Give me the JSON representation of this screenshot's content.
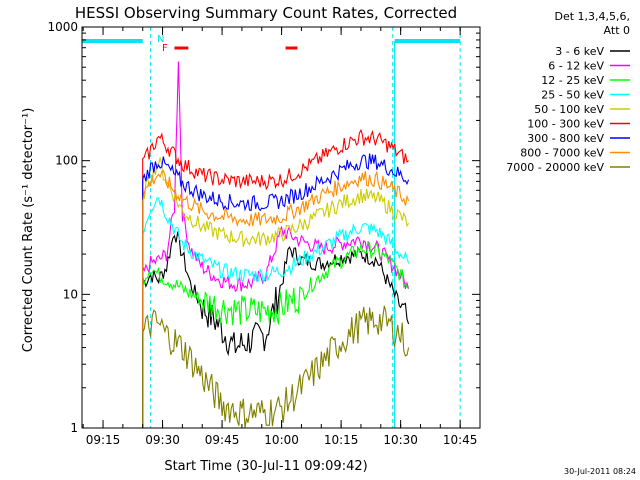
{
  "chart_data": {
    "type": "line",
    "title": "HESSI Observing Summary Count Rates, Corrected",
    "xlabel": "Start Time (30-Jul-11 09:09:42)",
    "ylabel": "Corrected Count Rate (s⁻¹ detector⁻¹)",
    "y_scale": "log",
    "ylim": [
      1,
      1000
    ],
    "xlim": [
      "09:09:42",
      "10:50:00"
    ],
    "x_tick_labels": [
      "09:15",
      "09:30",
      "09:45",
      "10:00",
      "10:15",
      "10:30",
      "10:45"
    ],
    "y_tick_labels": [
      "1",
      "10",
      "100",
      "1000"
    ],
    "legend_header": [
      "Det 1,3,4,5,6,",
      "Att 0"
    ],
    "legend_position": "right",
    "footer_timestamp": "30-Jul-2011 08:24",
    "flags": [
      {
        "label": "N",
        "color": "#00e5ee",
        "note": "night / eclipse intervals drawn as bars at top"
      },
      {
        "label": "F",
        "color": "#ff0000",
        "note": "flare flag intervals drawn as bars at top"
      }
    ],
    "night_intervals": [
      [
        "09:09:42",
        "09:25:00"
      ],
      [
        "10:28:30",
        "10:45:00"
      ]
    ],
    "flare_intervals": [
      [
        "09:33:00",
        "09:36:30"
      ],
      [
        "10:01:00",
        "10:04:00"
      ]
    ],
    "dashed_time_markers": [
      "09:27:00",
      "10:28:00",
      "10:45:00"
    ],
    "series": [
      {
        "name": "3 - 6 keV",
        "color": "#000000",
        "x": [
          "09:25",
          "09:27",
          "09:29",
          "09:31",
          "09:33",
          "09:35",
          "09:37",
          "09:40",
          "09:44",
          "09:48",
          "09:52",
          "09:56",
          "10:00",
          "10:02",
          "10:05",
          "10:10",
          "10:15",
          "10:20",
          "10:24",
          "10:27",
          "10:30",
          "10:32"
        ],
        "values": [
          12,
          14,
          13,
          16,
          30,
          20,
          12,
          8,
          6,
          4,
          4.5,
          5,
          12,
          22,
          18,
          17,
          19,
          20,
          18,
          12,
          8,
          6
        ]
      },
      {
        "name": "6 - 12 keV",
        "color": "#ff00ff",
        "x": [
          "09:25",
          "09:27",
          "09:29",
          "09:31",
          "09:33",
          "09:34",
          "09:35",
          "09:37",
          "09:40",
          "09:44",
          "09:48",
          "09:52",
          "09:56",
          "10:00",
          "10:05",
          "10:10",
          "10:15",
          "10:20",
          "10:24",
          "10:27",
          "10:30",
          "10:32"
        ],
        "values": [
          14,
          17,
          18,
          20,
          45,
          600,
          40,
          22,
          16,
          13,
          12,
          12,
          14,
          30,
          25,
          22,
          24,
          26,
          22,
          18,
          14,
          11
        ]
      },
      {
        "name": "12 - 25 keV",
        "color": "#00ff00",
        "x": [
          "09:25",
          "09:27",
          "09:29",
          "09:31",
          "09:35",
          "09:40",
          "09:45",
          "09:50",
          "09:55",
          "10:00",
          "10:05",
          "10:10",
          "10:15",
          "10:20",
          "10:24",
          "10:27",
          "10:30",
          "10:32"
        ],
        "values": [
          13,
          16,
          14,
          13,
          11,
          9,
          8,
          7.5,
          7.5,
          8,
          10,
          14,
          18,
          22,
          21,
          18,
          14,
          11
        ]
      },
      {
        "name": "25 - 50 keV",
        "color": "#00ffff",
        "x": [
          "09:25",
          "09:27",
          "09:29",
          "09:31",
          "09:35",
          "09:40",
          "09:45",
          "09:50",
          "09:55",
          "10:00",
          "10:05",
          "10:10",
          "10:15",
          "10:20",
          "10:24",
          "10:27",
          "10:30",
          "10:32"
        ],
        "values": [
          30,
          45,
          55,
          40,
          24,
          18,
          15,
          14,
          14,
          15,
          18,
          22,
          27,
          32,
          30,
          25,
          20,
          17
        ]
      },
      {
        "name": "50 - 100 keV",
        "color": "#cccc00",
        "x": [
          "09:25",
          "09:27",
          "09:29",
          "09:31",
          "09:35",
          "09:40",
          "09:45",
          "09:50",
          "09:55",
          "10:00",
          "10:05",
          "10:10",
          "10:15",
          "10:20",
          "10:24",
          "10:27",
          "10:30",
          "10:32"
        ],
        "values": [
          55,
          75,
          100,
          70,
          42,
          32,
          28,
          26,
          26,
          28,
          33,
          40,
          48,
          55,
          52,
          45,
          38,
          34
        ]
      },
      {
        "name": "100 - 300 keV",
        "color": "#ff0000",
        "x": [
          "09:25",
          "09:27",
          "09:29",
          "09:31",
          "09:35",
          "09:40",
          "09:45",
          "09:50",
          "09:55",
          "10:00",
          "10:05",
          "10:10",
          "10:15",
          "10:20",
          "10:24",
          "10:27",
          "10:30",
          "10:32"
        ],
        "values": [
          95,
          120,
          150,
          130,
          95,
          78,
          72,
          70,
          70,
          72,
          85,
          105,
          130,
          150,
          145,
          130,
          110,
          100
        ]
      },
      {
        "name": "300 - 800 keV",
        "color": "#0000ff",
        "x": [
          "09:25",
          "09:27",
          "09:29",
          "09:31",
          "09:35",
          "09:40",
          "09:45",
          "09:50",
          "09:55",
          "10:00",
          "10:05",
          "10:10",
          "10:15",
          "10:20",
          "10:24",
          "10:27",
          "10:30",
          "10:32"
        ],
        "values": [
          70,
          88,
          100,
          90,
          68,
          55,
          50,
          48,
          48,
          50,
          58,
          70,
          85,
          100,
          98,
          88,
          78,
          72
        ]
      },
      {
        "name": "800 - 7000 keV",
        "color": "#ff8c00",
        "x": [
          "09:25",
          "09:27",
          "09:29",
          "09:31",
          "09:35",
          "09:40",
          "09:45",
          "09:50",
          "09:55",
          "10:00",
          "10:05",
          "10:10",
          "10:15",
          "10:20",
          "10:24",
          "10:27",
          "10:30",
          "10:32"
        ],
        "values": [
          55,
          70,
          80,
          70,
          52,
          42,
          38,
          36,
          36,
          38,
          45,
          55,
          65,
          75,
          72,
          64,
          55,
          50
        ]
      },
      {
        "name": "7000 - 20000 keV",
        "color": "#808000",
        "x": [
          "09:25",
          "09:27",
          "09:29",
          "09:31",
          "09:35",
          "09:38",
          "09:42",
          "09:45",
          "09:50",
          "09:55",
          "10:00",
          "10:05",
          "10:10",
          "10:15",
          "10:20",
          "10:24",
          "10:27",
          "10:30",
          "10:32"
        ],
        "values": [
          5,
          6,
          6,
          5,
          4,
          3,
          2,
          1.5,
          1.3,
          1.3,
          1.4,
          2,
          3,
          4.5,
          6,
          6.5,
          6,
          5,
          4
        ]
      }
    ]
  }
}
